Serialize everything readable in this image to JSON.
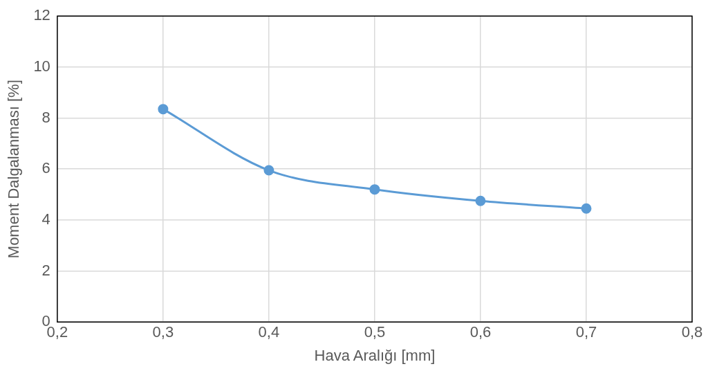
{
  "chart_data": {
    "type": "line",
    "xlabel": "Hava Aralığı [mm]",
    "ylabel": "Moment Dalgalanması [%]",
    "x": [
      0.3,
      0.4,
      0.5,
      0.6,
      0.7
    ],
    "values": [
      8.35,
      5.95,
      5.2,
      4.75,
      4.45
    ],
    "color": "#5b9bd5",
    "xlim": [
      0.2,
      0.8
    ],
    "xticks": [
      {
        "value": 0.2,
        "label": "0,2"
      },
      {
        "value": 0.3,
        "label": "0,3"
      },
      {
        "value": 0.4,
        "label": "0,4"
      },
      {
        "value": 0.5,
        "label": "0,5"
      },
      {
        "value": 0.6,
        "label": "0,6"
      },
      {
        "value": 0.7,
        "label": "0,7"
      },
      {
        "value": 0.8,
        "label": "0,8"
      }
    ],
    "ylim": [
      0,
      12
    ],
    "yticks": [
      0,
      2,
      4,
      6,
      8,
      10,
      12
    ],
    "grid": true,
    "marker": "circle",
    "line_style": "solid"
  }
}
